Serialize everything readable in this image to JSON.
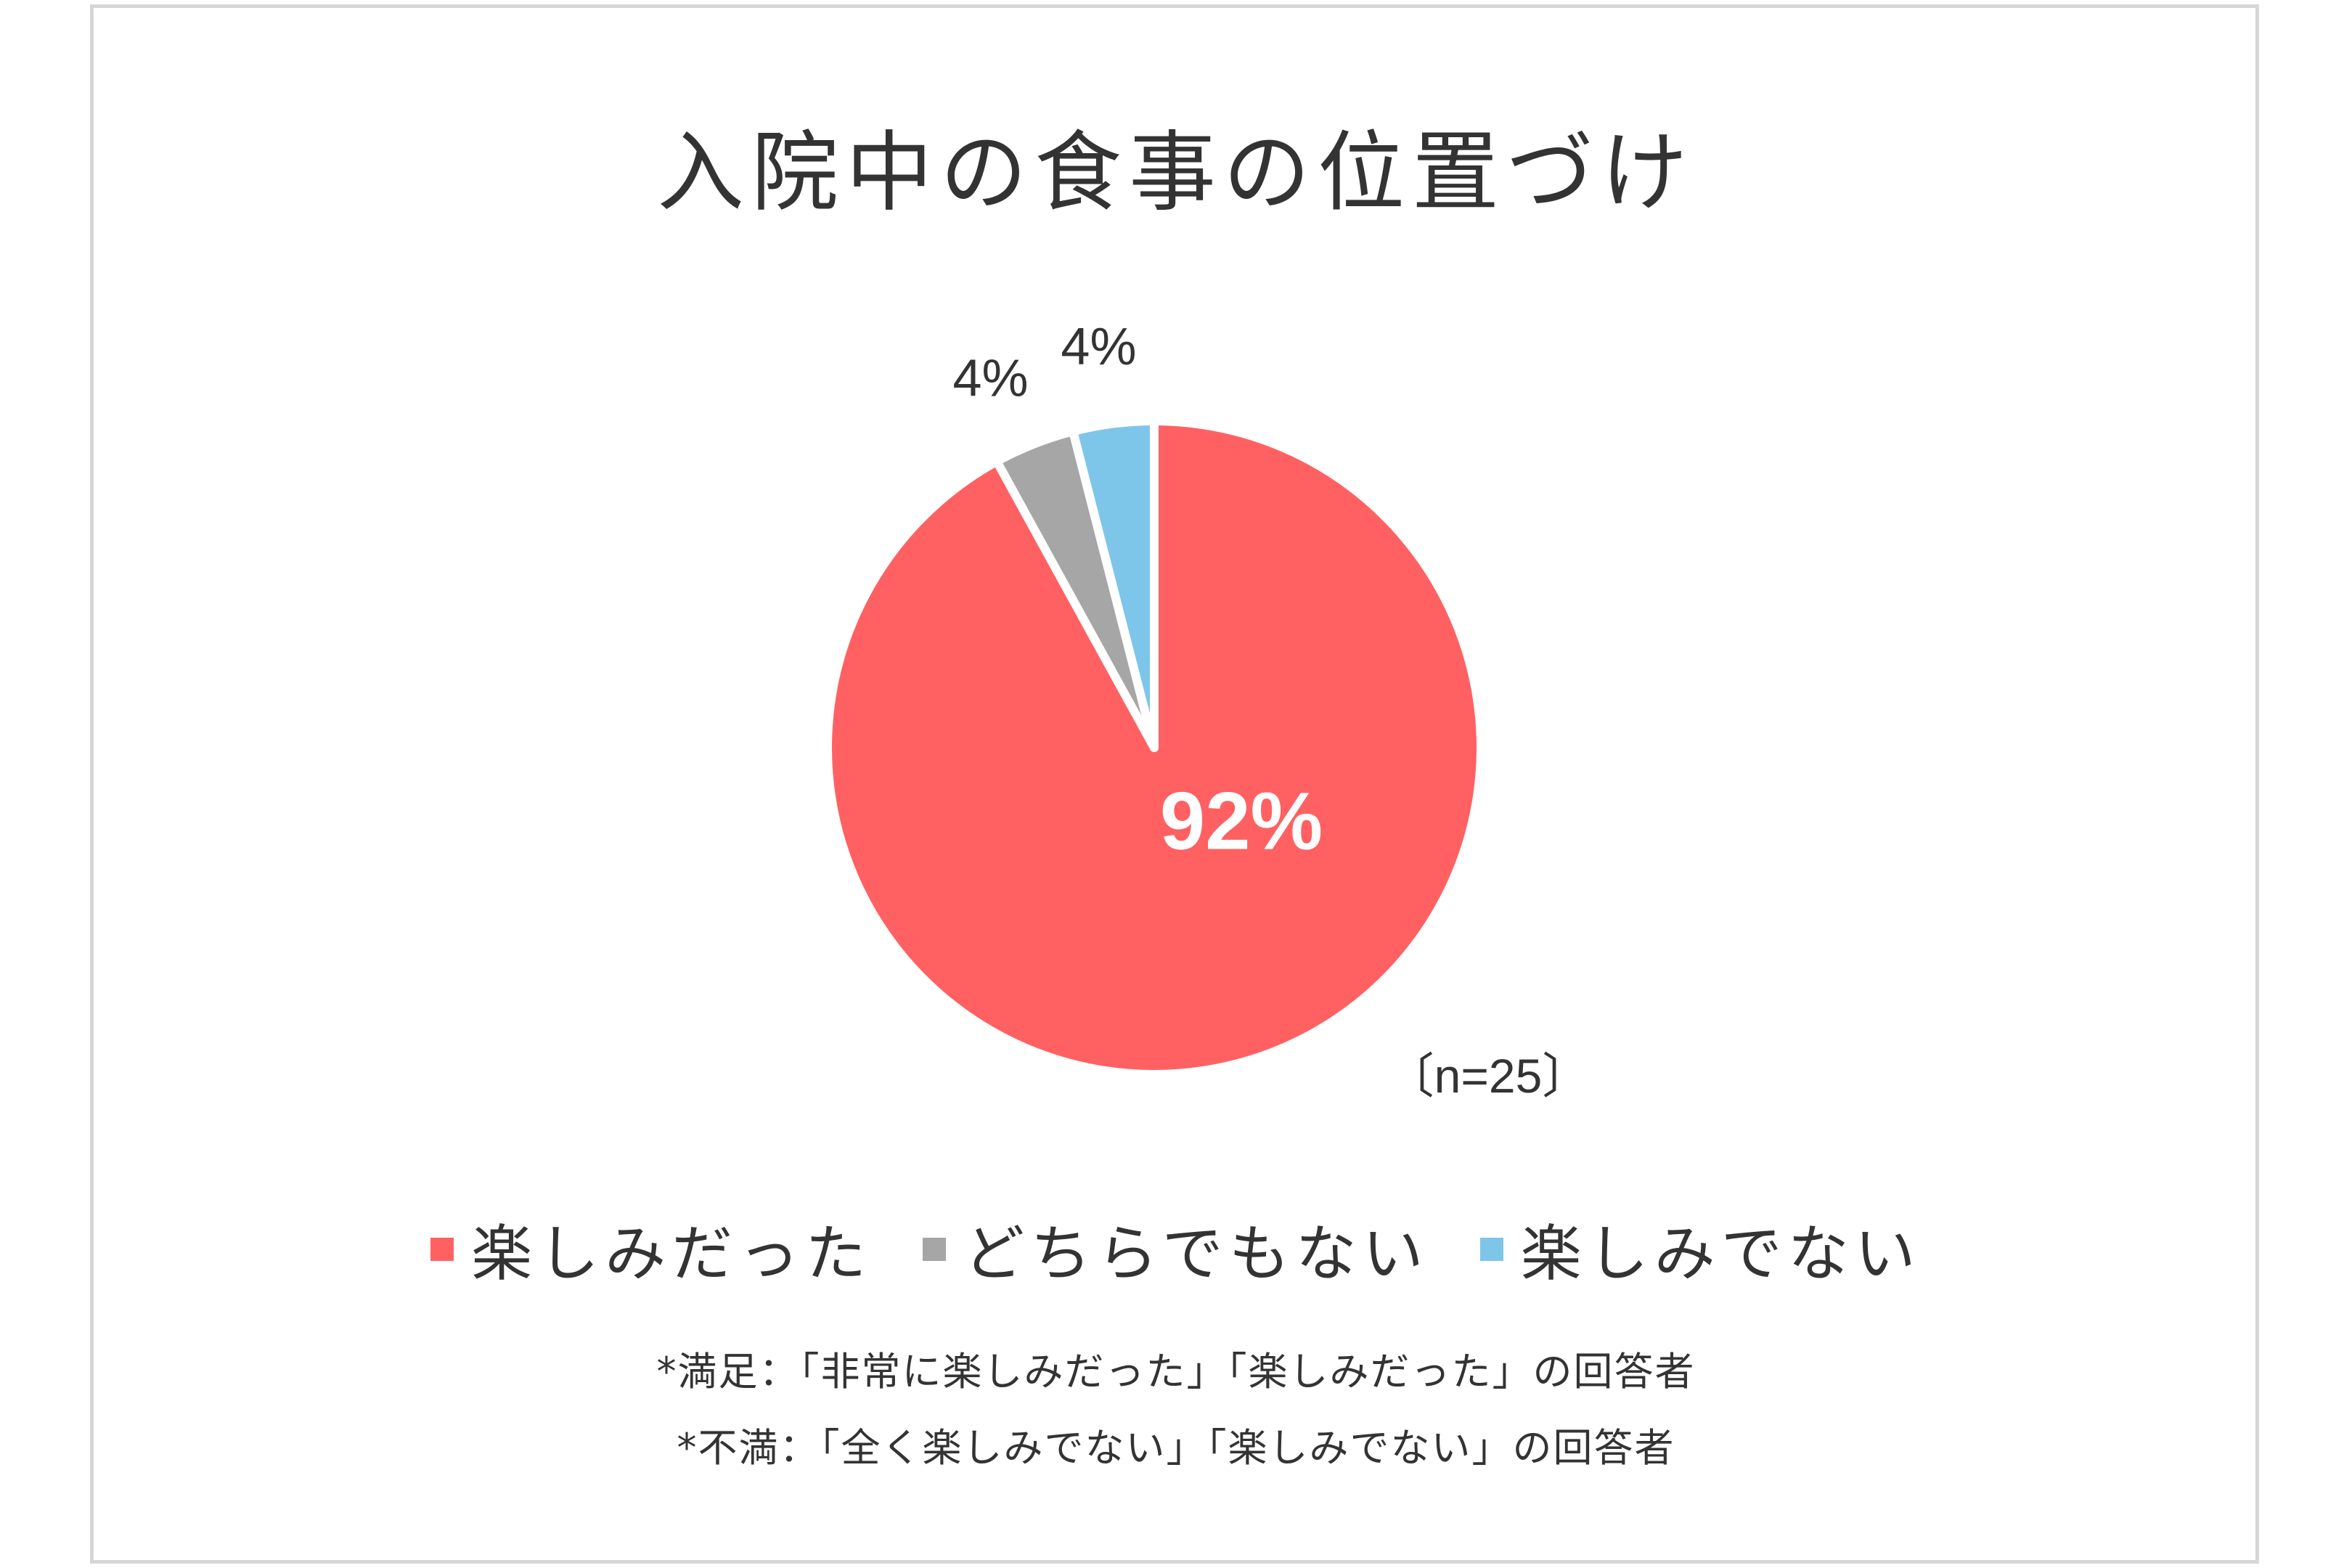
{
  "chart_data": {
    "type": "pie",
    "title": "入院中の食事の位置づけ",
    "categories": [
      "楽しみだった",
      "どちらでもない",
      "楽しみでない"
    ],
    "values": [
      92,
      4,
      4
    ],
    "data_labels": [
      "92%",
      "4%",
      "4%"
    ],
    "colors": [
      "#ff6163",
      "#a6a6a6",
      "#7ec5ea"
    ],
    "sample_size_label": "〔n=25〕",
    "legend_position": "bottom"
  },
  "notes": [
    "*満足：「非常に楽しみだった」「楽しみだった」の回答者",
    "*不満：「全く楽しみでない」「楽しみでない」の回答者"
  ]
}
